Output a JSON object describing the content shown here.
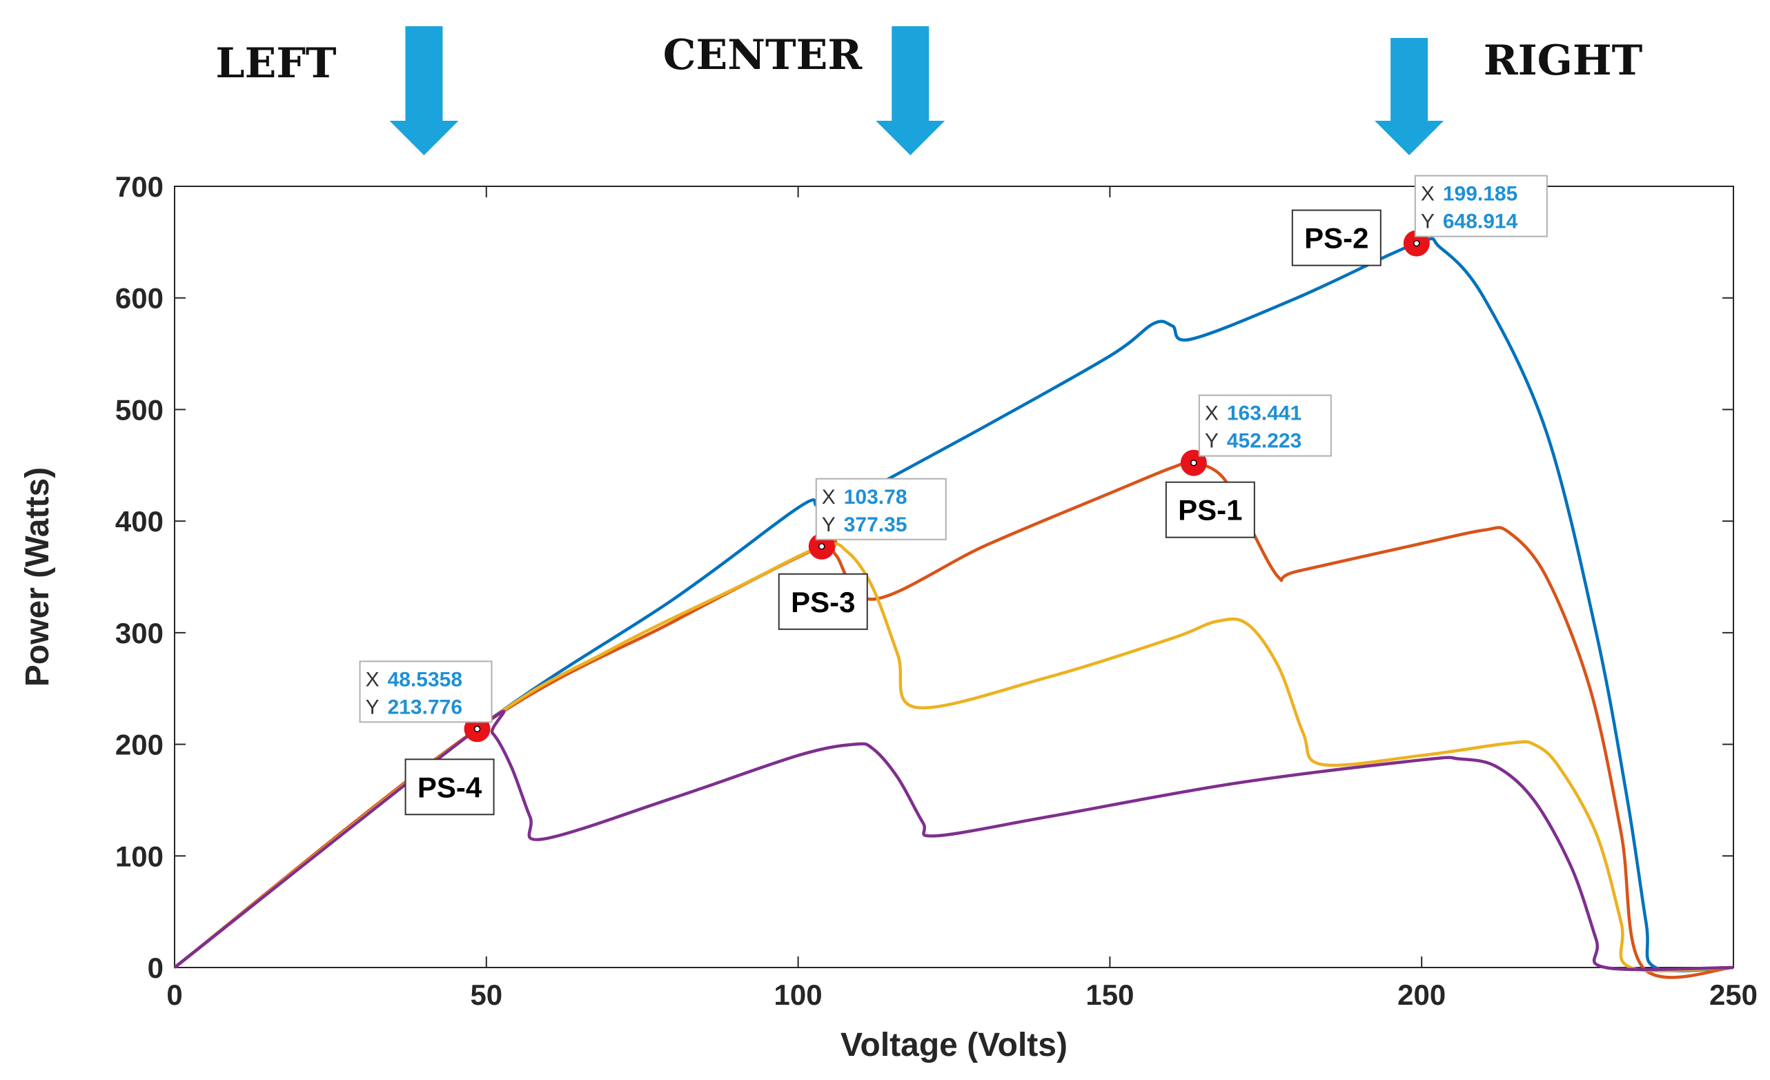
{
  "chart_data": {
    "type": "line",
    "title": "",
    "xlabel": "Voltage (Volts)",
    "ylabel": "Power (Watts)",
    "xlim": [
      0,
      250
    ],
    "ylim": [
      0,
      700
    ],
    "x_ticks": [
      0,
      50,
      100,
      150,
      200,
      250
    ],
    "y_ticks": [
      0,
      100,
      200,
      300,
      400,
      500,
      600,
      700
    ],
    "grid": false,
    "series": [
      {
        "name": "PS-2 (blue)",
        "color": "#0072BD",
        "points": [
          [
            0,
            0
          ],
          [
            48.5,
            213.8
          ],
          [
            80,
            330
          ],
          [
            100,
            412
          ],
          [
            103,
            414
          ],
          [
            105,
            406
          ],
          [
            107,
            415
          ],
          [
            130,
            485
          ],
          [
            150,
            548
          ],
          [
            157,
            577
          ],
          [
            160,
            575
          ],
          [
            163,
            563
          ],
          [
            180,
            600
          ],
          [
            199.185,
            648.914
          ],
          [
            203,
            645
          ],
          [
            210,
            600
          ],
          [
            220,
            480
          ],
          [
            228,
            300
          ],
          [
            233,
            150
          ],
          [
            236,
            40
          ],
          [
            237.5,
            0
          ],
          [
            250,
            0
          ]
        ]
      },
      {
        "name": "PS-1 (orange)",
        "color": "#D95319",
        "points": [
          [
            0,
            0
          ],
          [
            48.5,
            213.8
          ],
          [
            80,
            310
          ],
          [
            103.78,
            377.35
          ],
          [
            106,
            370
          ],
          [
            112,
            330
          ],
          [
            130,
            378
          ],
          [
            150,
            425
          ],
          [
            160,
            448
          ],
          [
            163.441,
            452.223
          ],
          [
            168,
            440
          ],
          [
            172,
            400
          ],
          [
            177,
            350
          ],
          [
            180,
            355
          ],
          [
            200,
            380
          ],
          [
            210,
            392
          ],
          [
            214,
            390
          ],
          [
            220,
            350
          ],
          [
            227,
            250
          ],
          [
            232,
            120
          ],
          [
            235.5,
            0
          ],
          [
            250,
            0
          ]
        ]
      },
      {
        "name": "PS-3 (yellow)",
        "color": "#EDB120",
        "points": [
          [
            0,
            0
          ],
          [
            48.5,
            213.8
          ],
          [
            70,
            285
          ],
          [
            90,
            340
          ],
          [
            103.78,
            377.35
          ],
          [
            108,
            372
          ],
          [
            112,
            340
          ],
          [
            116,
            280
          ],
          [
            119,
            233
          ],
          [
            140,
            260
          ],
          [
            160,
            295
          ],
          [
            167,
            310
          ],
          [
            172,
            308
          ],
          [
            177,
            270
          ],
          [
            181,
            210
          ],
          [
            184,
            182
          ],
          [
            200,
            190
          ],
          [
            214,
            201
          ],
          [
            218,
            200
          ],
          [
            222,
            180
          ],
          [
            228,
            120
          ],
          [
            232,
            40
          ],
          [
            233.5,
            0
          ],
          [
            250,
            0
          ]
        ]
      },
      {
        "name": "PS-4 (purple)",
        "color": "#7E2F8E",
        "points": [
          [
            0,
            0
          ],
          [
            48.5358,
            213.776
          ],
          [
            51,
            210
          ],
          [
            54,
            180
          ],
          [
            57,
            135
          ],
          [
            59,
            115
          ],
          [
            80,
            152
          ],
          [
            100,
            190
          ],
          [
            109,
            200
          ],
          [
            112,
            196
          ],
          [
            116,
            170
          ],
          [
            120,
            130
          ],
          [
            122,
            118
          ],
          [
            140,
            135
          ],
          [
            170,
            165
          ],
          [
            200,
            186
          ],
          [
            206,
            187
          ],
          [
            212,
            180
          ],
          [
            218,
            150
          ],
          [
            224,
            90
          ],
          [
            228,
            25
          ],
          [
            229.5,
            0
          ],
          [
            250,
            0
          ]
        ]
      }
    ],
    "data_tips": [
      {
        "x": 48.5358,
        "y": 213.776,
        "x_text": "48.5358",
        "y_text": "213.776"
      },
      {
        "x": 103.78,
        "y": 377.35,
        "x_text": "103.78",
        "y_text": "377.35"
      },
      {
        "x": 163.441,
        "y": 452.223,
        "x_text": "163.441",
        "y_text": "452.223"
      },
      {
        "x": 199.185,
        "y": 648.914,
        "x_text": "199.185",
        "y_text": "648.914"
      }
    ],
    "peak_labels": [
      {
        "text": "PS-1",
        "x": 163.441,
        "y": 452.223
      },
      {
        "text": "PS-2",
        "x": 199.185,
        "y": 648.914
      },
      {
        "text": "PS-3",
        "x": 103.78,
        "y": 377.35
      },
      {
        "text": "PS-4",
        "x": 48.5358,
        "y": 213.776
      }
    ],
    "zone_labels": [
      {
        "text": "LEFT",
        "arrow_x": 40
      },
      {
        "text": "CENTER",
        "arrow_x": 118
      },
      {
        "text": "RIGHT",
        "arrow_x": 198
      }
    ],
    "colors": {
      "axis": "#262626",
      "arrow": "#1BA3DC",
      "marker": "#E8121A",
      "tip_value": "#1E90D6",
      "tip_key": "#333333"
    }
  }
}
